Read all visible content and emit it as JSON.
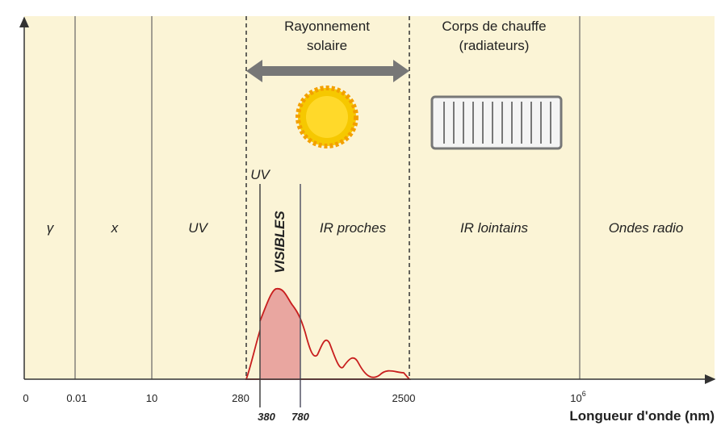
{
  "regions": {
    "gamma": "γ",
    "x": "x",
    "uv": "UV",
    "uv_small": "UV",
    "visibles": "VISIBLES",
    "ir_proches": "IR proches",
    "ir_lointains": "IR lointains",
    "ondes_radio": "Ondes radio"
  },
  "top": {
    "solaire": [
      "Rayonnement",
      "solaire"
    ],
    "chauffe": [
      "Corps de chauffe",
      "(radiateurs)"
    ]
  },
  "axis": {
    "ticks": [
      "0",
      "0.01",
      "10",
      "280",
      "2500"
    ],
    "tick_pow": {
      "base": "10",
      "exp": "6"
    },
    "visible_bounds": [
      "380",
      "780"
    ],
    "label": "Longueur d'onde (nm)"
  }
}
